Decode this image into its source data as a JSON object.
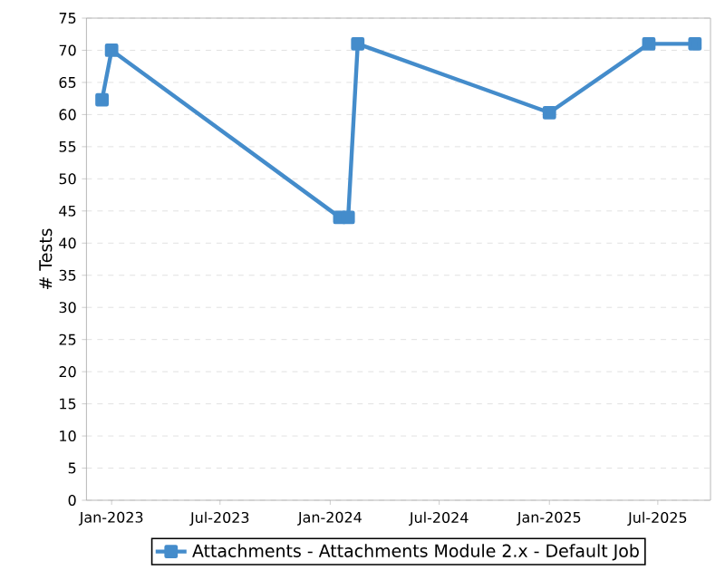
{
  "chart_data": {
    "type": "line",
    "ylabel": "# Tests",
    "x": [
      "2022-12-16",
      "2023-01-01",
      "2024-01-17",
      "2024-01-31",
      "2024-02-16",
      "2025-01-01",
      "2025-06-16",
      "2025-09-01"
    ],
    "series": [
      {
        "name": "Attachments - Attachments Module 2.x - Default Job",
        "color": "#448ccb",
        "values": [
          62.3,
          70,
          44,
          44,
          71,
          60.3,
          71,
          71
        ]
      }
    ],
    "xlim": [
      "2022-11-20",
      "2025-09-27"
    ],
    "xticks": [
      {
        "value": "2023-01-01",
        "label": "Jan-2023"
      },
      {
        "value": "2023-07-01",
        "label": "Jul-2023"
      },
      {
        "value": "2024-01-01",
        "label": "Jan-2024"
      },
      {
        "value": "2024-07-01",
        "label": "Jul-2024"
      },
      {
        "value": "2025-01-01",
        "label": "Jan-2025"
      },
      {
        "value": "2025-07-01",
        "label": "Jul-2025"
      }
    ],
    "ylim": [
      0,
      75
    ],
    "yticks": [
      0,
      5,
      10,
      15,
      20,
      25,
      30,
      35,
      40,
      45,
      50,
      55,
      60,
      65,
      70,
      75
    ],
    "grid": "y",
    "legend": "bottom",
    "marker": "square",
    "line_style": "solid"
  }
}
